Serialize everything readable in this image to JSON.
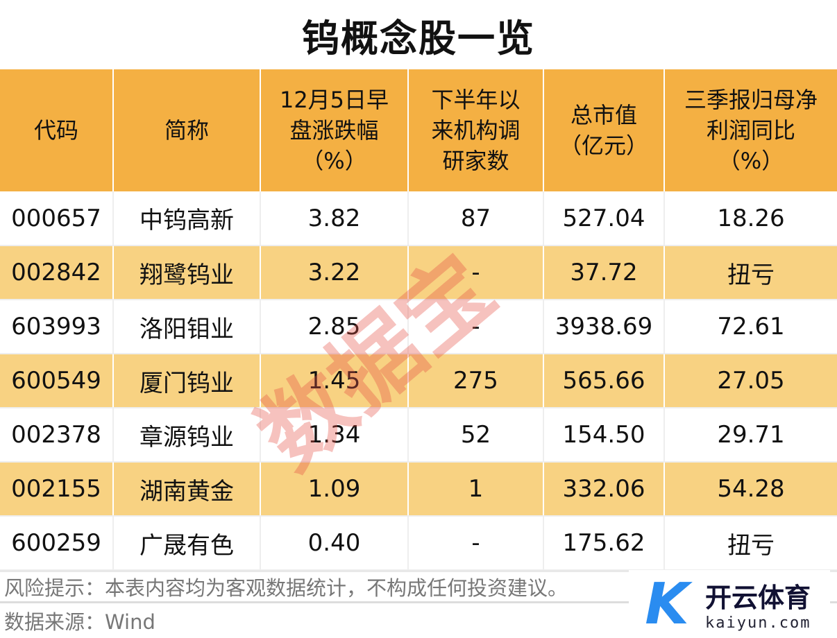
{
  "title": "钨概念股一览",
  "columns": [
    "代码",
    "简称",
    "12月5日早盘涨跌幅（%）",
    "下半年以来机构调研家数",
    "总市值（亿元）",
    "三季报归母净利润同比（%）"
  ],
  "rows": [
    [
      "000657",
      "中钨高新",
      "3.82",
      "87",
      "527.04",
      "18.26"
    ],
    [
      "002842",
      "翔鹭钨业",
      "3.22",
      "-",
      "37.72",
      "扭亏"
    ],
    [
      "603993",
      "洛阳钼业",
      "2.85",
      "-",
      "3938.69",
      "72.61"
    ],
    [
      "600549",
      "厦门钨业",
      "1.45",
      "275",
      "565.66",
      "27.05"
    ],
    [
      "002378",
      "章源钨业",
      "1.34",
      "52",
      "154.50",
      "29.71"
    ],
    [
      "002155",
      "湖南黄金",
      "1.09",
      "1",
      "332.06",
      "54.28"
    ],
    [
      "600259",
      "广晟有色",
      "0.40",
      "-",
      "175.62",
      "扭亏"
    ]
  ],
  "footer": {
    "risk": "风险提示：本表内容均为客观数据统计，不构成任何投资建议。",
    "source": "数据来源：Wind"
  },
  "watermark": "数据宝",
  "logo": {
    "name": "开云体育",
    "url": "kaiyun.com"
  },
  "colors": {
    "header": "#f4b043",
    "alt_row": "#f8d282"
  }
}
